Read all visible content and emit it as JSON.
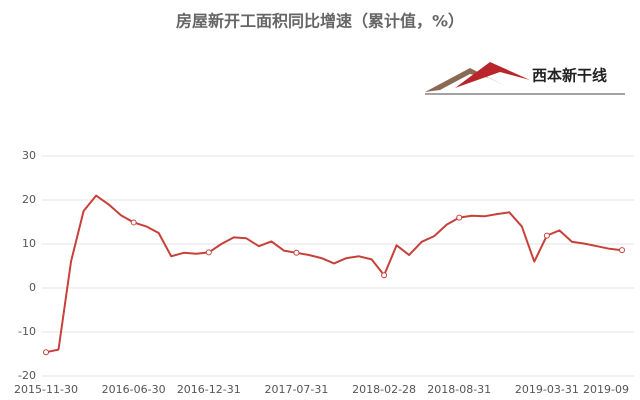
{
  "chart_data": {
    "type": "line",
    "title": "房屋新开工面积同比增速（累计值，%）",
    "logo": "西本新干线",
    "categories": [
      "2015-11-30",
      null,
      null,
      null,
      null,
      null,
      null,
      "2016-06-30",
      null,
      null,
      null,
      null,
      null,
      "2016-12-31",
      null,
      null,
      null,
      null,
      null,
      null,
      "2017-07-31",
      null,
      null,
      null,
      null,
      null,
      null,
      "2018-02-28",
      null,
      null,
      null,
      null,
      null,
      "2018-08-31",
      null,
      null,
      null,
      null,
      null,
      null,
      "2019-03-31",
      null,
      null,
      null,
      null,
      null,
      "2019-09"
    ],
    "series": [
      {
        "name": "房屋新开工面积同比增速",
        "color": "#c8403a",
        "values": [
          -14.6,
          -14.0,
          6.0,
          17.5,
          21.0,
          19.0,
          16.5,
          14.9,
          14.0,
          12.5,
          7.2,
          8.0,
          7.8,
          8.1,
          10.0,
          11.5,
          11.3,
          9.5,
          10.6,
          8.5,
          8.0,
          7.5,
          6.8,
          5.6,
          6.8,
          7.2,
          6.5,
          2.9,
          9.7,
          7.5,
          10.5,
          11.8,
          14.4,
          16.0,
          16.4,
          16.3,
          16.8,
          17.2,
          14.0,
          6.0,
          11.9,
          13.1,
          10.5,
          10.1,
          9.5,
          8.9,
          8.6
        ]
      }
    ],
    "ylim": [
      -20,
      30
    ],
    "yticks": [
      -20,
      -10,
      0,
      10,
      20,
      30
    ],
    "grid": true
  }
}
